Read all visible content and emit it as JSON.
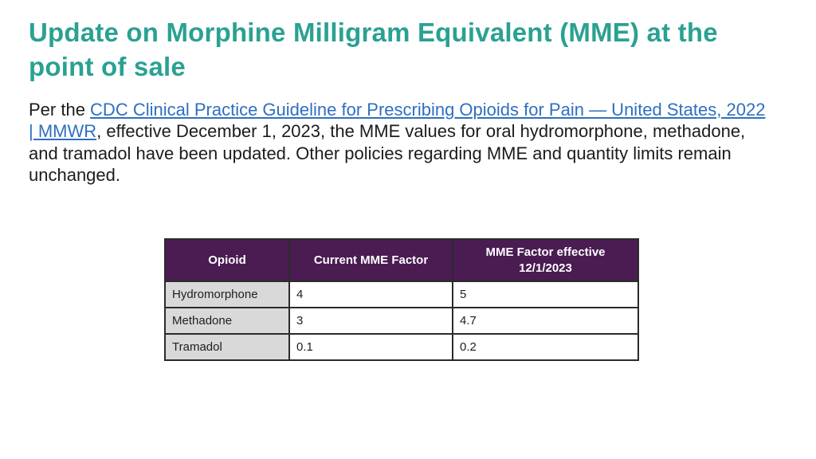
{
  "slide": {
    "title": "Update on Morphine Milligram Equivalent (MME) at the point of sale",
    "paragraph": {
      "pre": "Per the  ",
      "link_text": "CDC Clinical Practice Guideline for Prescribing Opioids for Pain — United States, 2022 | MMWR",
      "post": ", effective December 1, 2023,  the MME values for oral hydromorphone, methadone, and tramadol have been updated. Other policies regarding MME and quantity limits remain unchanged."
    },
    "table": {
      "headers": [
        "Opioid",
        "Current MME Factor",
        "MME Factor effective 12/1/2023"
      ],
      "rows": [
        {
          "opioid": "Hydromorphone",
          "current_factor": "4",
          "effective_factor": "5"
        },
        {
          "opioid": "Methadone",
          "current_factor": "3",
          "effective_factor": "4.7"
        },
        {
          "opioid": "Tramadol",
          "current_factor": "0.1",
          "effective_factor": "0.2"
        }
      ]
    },
    "colors": {
      "title_teal": "#2aa191",
      "link_blue": "#2f6fc1",
      "table_header_purple": "#4a1c52",
      "row_label_gray": "#d9d9d9"
    }
  }
}
